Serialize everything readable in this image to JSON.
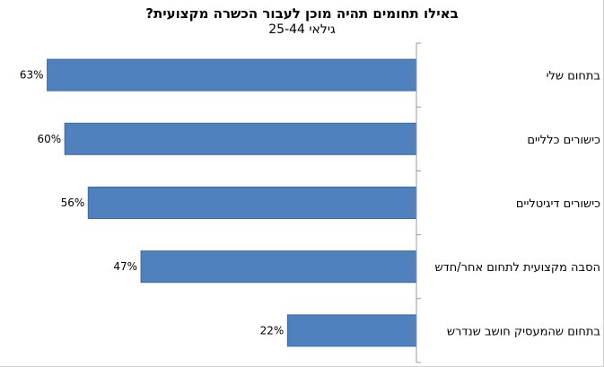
{
  "chart_data": {
    "type": "bar",
    "orientation": "horizontal",
    "title": "באילו תחומים תהיה מוכן לעבור הכשרה מקצועית?",
    "subtitle": "גילאי 25-44",
    "categories": [
      "בתחום שלי",
      "כישורים כלליים",
      "כישורים דיגיטליים",
      "הסבה מקצועית לתחום אחר/חדש",
      "בתחום שהמעסיק חושב שנדרש"
    ],
    "values": [
      63,
      60,
      56,
      47,
      22
    ],
    "value_labels": [
      "63%",
      "60%",
      "56%",
      "47%",
      "22%"
    ],
    "xlim": [
      0,
      66
    ],
    "grid": false,
    "legend": "none",
    "bar_color": "#4f81bd",
    "bar_border_color": "#3a6aa5"
  }
}
